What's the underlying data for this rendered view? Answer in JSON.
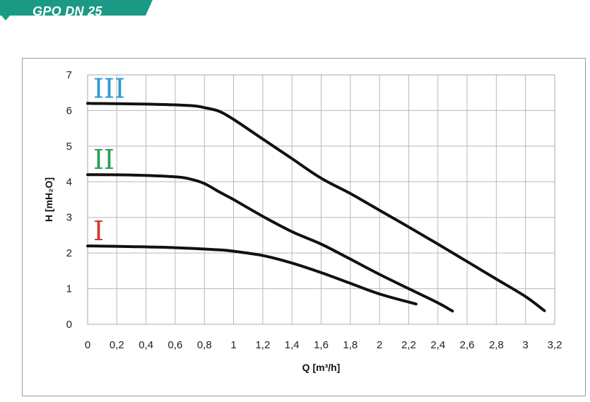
{
  "header": {
    "title": "GPO DN 25"
  },
  "colors": {
    "banner": "#1a9a85",
    "curve": "#111111",
    "grid": "#b8b8b8",
    "label_III": "#2a9bd0",
    "label_II": "#28a05a",
    "label_I": "#d23a2e"
  },
  "chart_data": {
    "type": "line",
    "title": "",
    "xlabel": "Q [m³/h]",
    "ylabel": "H [mH₂O]",
    "xlim": [
      0,
      3.2
    ],
    "ylim": [
      0,
      7
    ],
    "grid": true,
    "x_ticks": [
      "0",
      "0,2",
      "0,4",
      "0,6",
      "0,8",
      "1",
      "1,2",
      "1,4",
      "1,6",
      "1,8",
      "2",
      "2,2",
      "2,4",
      "2,6",
      "2,8",
      "3",
      "3,2"
    ],
    "y_ticks": [
      "0",
      "1",
      "2",
      "3",
      "4",
      "5",
      "6",
      "7"
    ],
    "series": [
      {
        "name": "III",
        "color": "#2a9bd0",
        "x": [
          0,
          0.4,
          0.7,
          0.8,
          0.9,
          1.0,
          1.2,
          1.4,
          1.6,
          1.8,
          2.0,
          2.2,
          2.4,
          2.6,
          2.8,
          3.0,
          3.13
        ],
        "y": [
          6.2,
          6.18,
          6.14,
          6.08,
          5.98,
          5.75,
          5.2,
          4.65,
          4.1,
          3.67,
          3.2,
          2.73,
          2.25,
          1.76,
          1.27,
          0.78,
          0.38
        ]
      },
      {
        "name": "II",
        "color": "#28a05a",
        "x": [
          0,
          0.3,
          0.6,
          0.7,
          0.8,
          0.9,
          1.0,
          1.2,
          1.4,
          1.6,
          1.8,
          2.0,
          2.2,
          2.4,
          2.5
        ],
        "y": [
          4.2,
          4.19,
          4.14,
          4.08,
          3.95,
          3.72,
          3.5,
          3.03,
          2.6,
          2.25,
          1.83,
          1.4,
          1.0,
          0.6,
          0.37
        ]
      },
      {
        "name": "I",
        "color": "#d23a2e",
        "x": [
          0,
          0.3,
          0.6,
          0.9,
          1.0,
          1.2,
          1.4,
          1.6,
          1.8,
          2.0,
          2.25
        ],
        "y": [
          2.2,
          2.18,
          2.15,
          2.09,
          2.05,
          1.93,
          1.72,
          1.45,
          1.15,
          0.85,
          0.57
        ]
      }
    ]
  }
}
